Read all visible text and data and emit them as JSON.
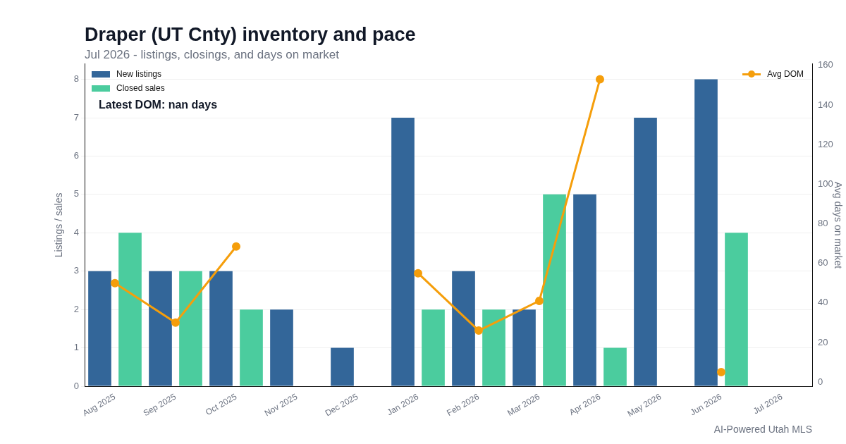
{
  "chart_data": {
    "type": "bar",
    "title": "Draper (UT Cnty) inventory and pace",
    "subtitle": "Jul 2026 - listings, closings, and days on market",
    "ylabel": "Listings / sales",
    "y2label": "Avg days on market",
    "categories": [
      "Aug 2025",
      "Sep 2025",
      "Oct 2025",
      "Nov 2025",
      "Dec 2025",
      "Jan 2026",
      "Feb 2026",
      "Mar 2026",
      "Apr 2026",
      "May 2026",
      "Jun 2026",
      "Jul 2026"
    ],
    "series": [
      {
        "name": "New listings",
        "color": "#336699",
        "values": [
          3,
          3,
          3,
          2,
          1,
          7,
          3,
          2,
          5,
          7,
          8,
          null
        ]
      },
      {
        "name": "Closed sales",
        "color": "#4bcc9e",
        "values": [
          4,
          3,
          2,
          null,
          null,
          2,
          2,
          5,
          1,
          null,
          4,
          null
        ]
      },
      {
        "name": "Avg DOM",
        "type": "line",
        "axis": "y2",
        "color": "#f59e0b",
        "values": [
          50,
          30,
          68.5,
          null,
          null,
          55,
          26,
          41,
          153,
          null,
          5,
          null
        ]
      }
    ],
    "ylim": [
      0,
      8.4
    ],
    "yticks": [
      0,
      1,
      2,
      3,
      4,
      5,
      6,
      7,
      8
    ],
    "y2lim": [
      -2.1,
      160.7
    ],
    "y2ticks": [
      0,
      20,
      40,
      60,
      80,
      100,
      120,
      140,
      160
    ],
    "grid": "y",
    "legend": "top",
    "marker": "circle",
    "annotations": [
      "Latest DOM: nan days",
      "AI-Powered Utah MLS"
    ]
  }
}
